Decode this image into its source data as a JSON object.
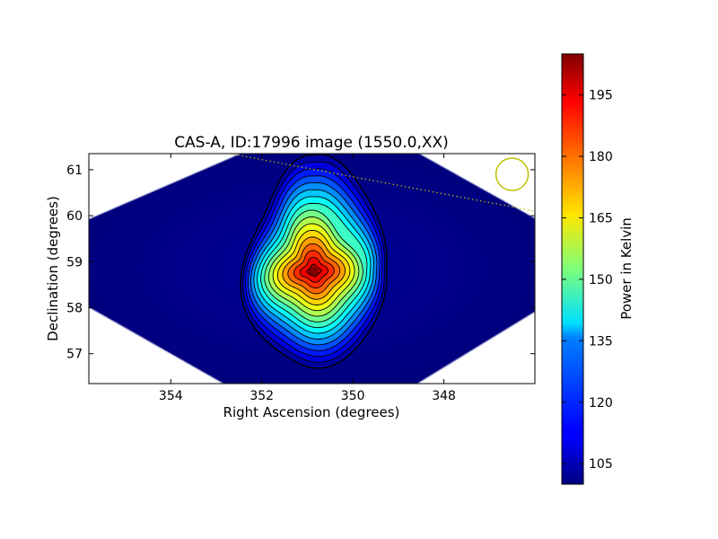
{
  "chart_data": {
    "type": "heatmap",
    "title": "CAS-A, ID:17996 image (1550.0,XX)",
    "xlabel": "Right Ascension (degrees)",
    "ylabel": "Declination (degrees)",
    "xlim": [
      355.8,
      346.0
    ],
    "ylim": [
      56.35,
      61.35
    ],
    "x_ticks": [
      354,
      352,
      350,
      348
    ],
    "y_ticks": [
      57,
      58,
      59,
      60,
      61
    ],
    "x_tick_labels": [
      "354",
      "352",
      "350",
      "348"
    ],
    "y_tick_labels": [
      "57",
      "58",
      "59",
      "60",
      "61"
    ],
    "colorbar": {
      "label": "Power in Kelvin",
      "range": [
        100,
        205
      ],
      "ticks": [
        105,
        120,
        135,
        150,
        165,
        180,
        195
      ],
      "tick_labels": [
        "105",
        "120",
        "135",
        "150",
        "165",
        "180",
        "195"
      ],
      "colormap": "jet"
    },
    "peak": {
      "ra": 350.85,
      "dec": 58.8,
      "value": 205
    },
    "background_value": 102,
    "contour_levels": [
      104,
      110,
      116,
      122,
      128,
      134,
      140,
      146,
      152,
      158,
      164,
      170,
      176,
      182,
      188,
      194,
      200
    ],
    "beam_marker": {
      "ra": 346.5,
      "dec": 60.9,
      "color": "#bfbf00"
    },
    "horizon_line": {
      "ra": [
        352.7,
        346.0
      ],
      "dec": [
        61.35,
        60.1
      ],
      "color": "#bfbf00",
      "style": "dotted"
    },
    "grid": false
  }
}
